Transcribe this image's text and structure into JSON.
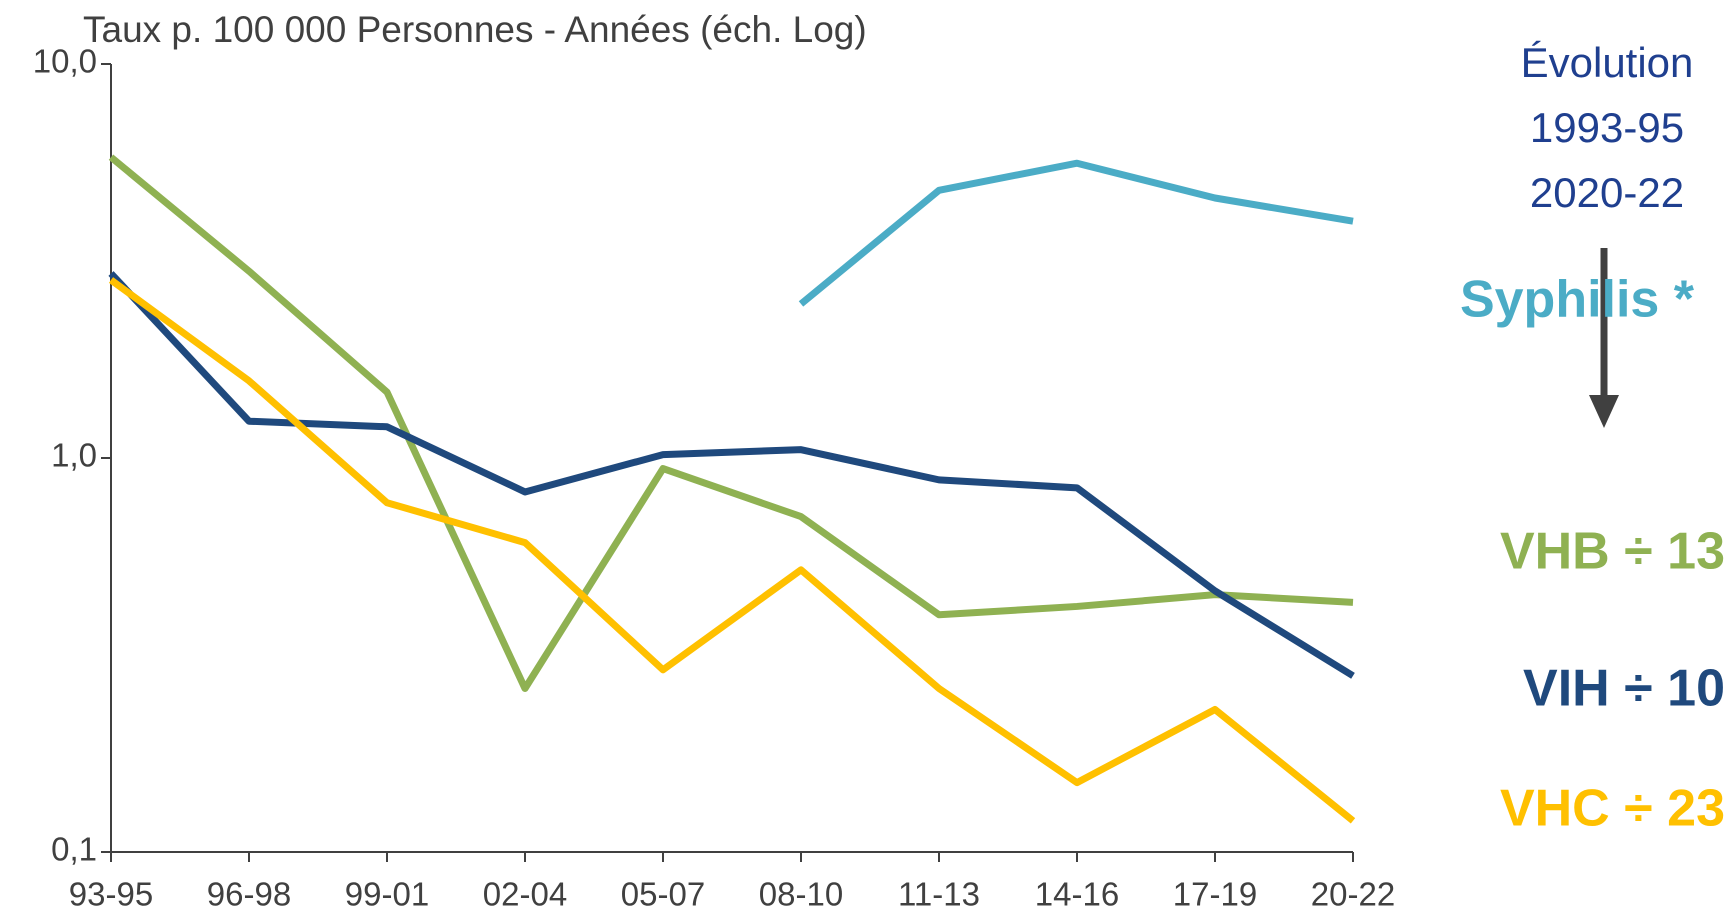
{
  "chart_data": {
    "type": "line",
    "title": "Taux p. 100 000 Personnes - Années (éch. Log)",
    "annotation": [
      "Évolution",
      "1993-95",
      "2020-22"
    ],
    "categories": [
      "93-95",
      "96-98",
      "99-01",
      "02-04",
      "05-07",
      "08-10",
      "11-13",
      "14-16",
      "17-19",
      "20-22"
    ],
    "yscale": "log",
    "ylim": [
      0.1,
      10
    ],
    "yticks": [
      {
        "value": 0.1,
        "label": "0,1"
      },
      {
        "value": 1,
        "label": "1,0"
      },
      {
        "value": 10,
        "label": "10,0"
      }
    ],
    "series": [
      {
        "name": "Syphilis *",
        "color": "#4bacc6",
        "values": [
          null,
          null,
          null,
          null,
          null,
          2.46,
          4.78,
          5.6,
          4.57,
          3.99
        ]
      },
      {
        "name": "VHB ÷ 13",
        "color": "#8fb152",
        "values": [
          5.8,
          2.98,
          1.47,
          0.26,
          0.94,
          0.71,
          0.4,
          0.42,
          0.45,
          0.43
        ]
      },
      {
        "name": "VIH ÷ 10",
        "color": "#1f497d",
        "values": [
          2.94,
          1.24,
          1.2,
          0.82,
          1.02,
          1.05,
          0.88,
          0.84,
          0.46,
          0.28
        ]
      },
      {
        "name": "VHC ÷ 23",
        "color": "#ffc000",
        "values": [
          2.83,
          1.57,
          0.77,
          0.61,
          0.29,
          0.52,
          0.26,
          0.15,
          0.23,
          0.12
        ]
      }
    ]
  }
}
